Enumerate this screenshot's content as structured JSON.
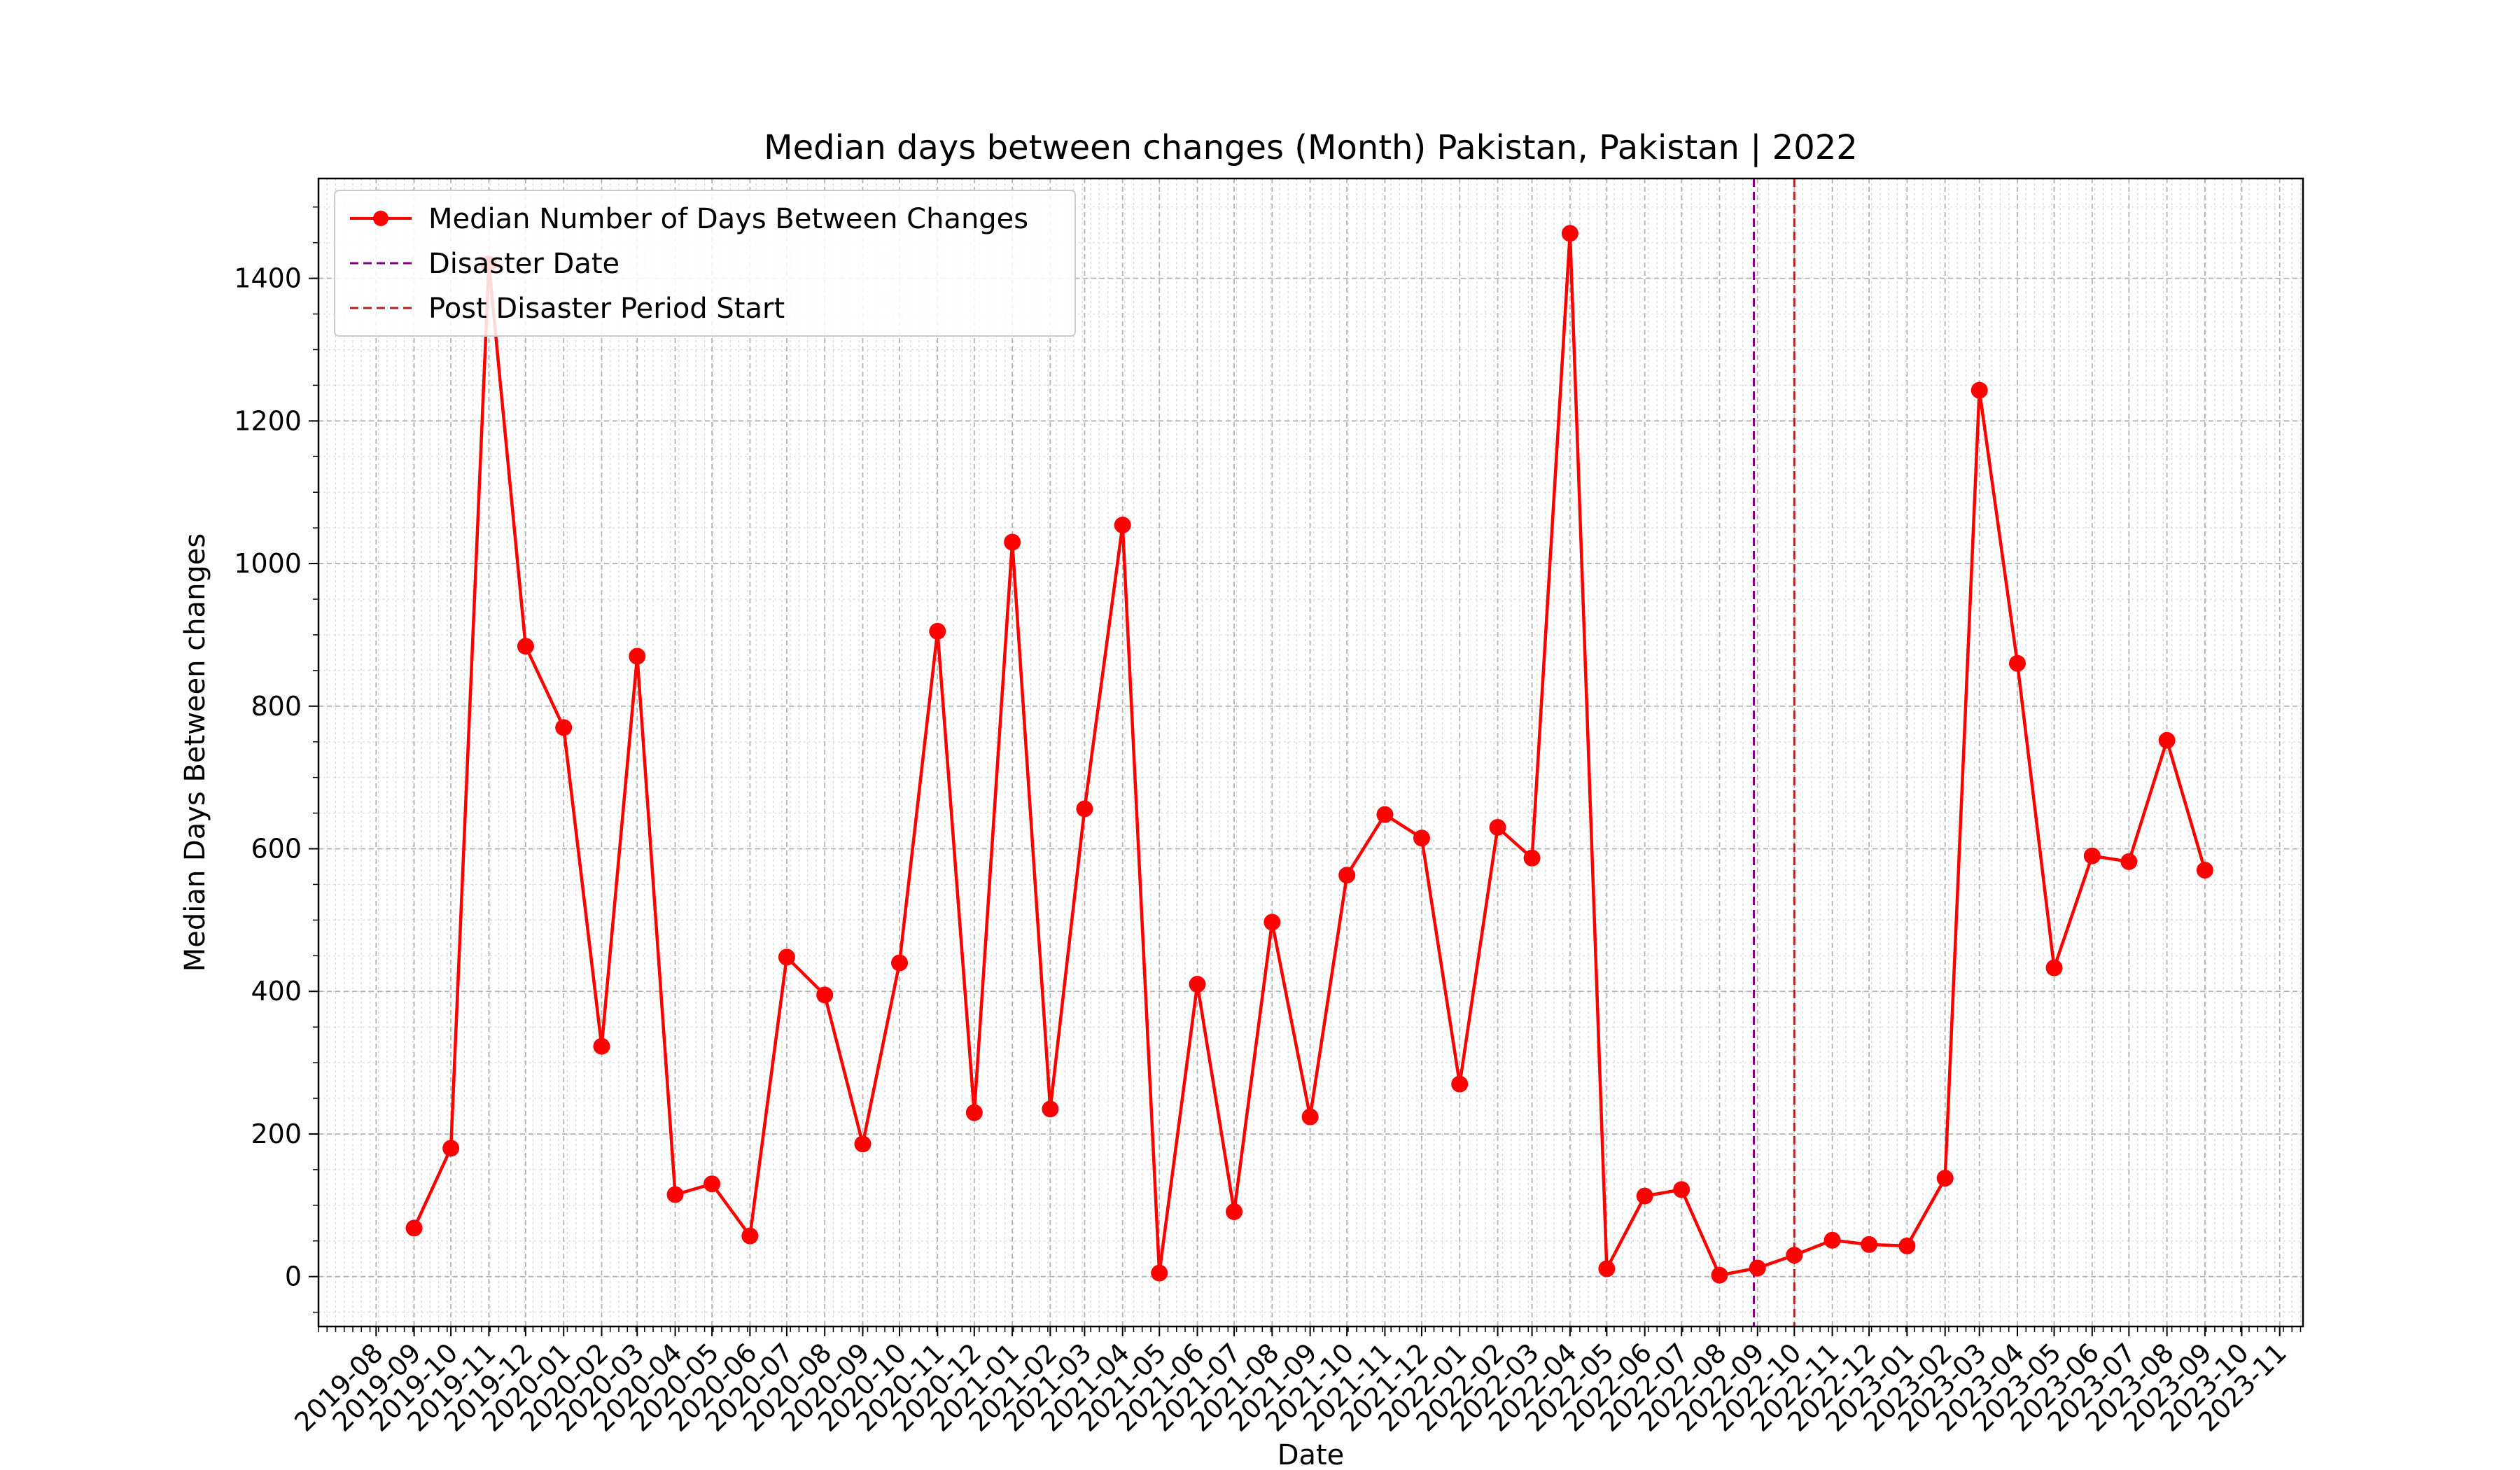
{
  "chart_data": {
    "type": "line",
    "title": "Median days between changes (Month) Pakistan, Pakistan | 2022",
    "xlabel": "Date",
    "ylabel": "Median Days Between changes",
    "ylim": [
      -70,
      1540
    ],
    "yticks": [
      0,
      200,
      400,
      600,
      800,
      1000,
      1200,
      1400
    ],
    "xlim": [
      "2019-06-15",
      "2023-11-20"
    ],
    "xticks": [
      "2019-08",
      "2019-09",
      "2019-10",
      "2019-11",
      "2019-12",
      "2020-01",
      "2020-02",
      "2020-03",
      "2020-04",
      "2020-05",
      "2020-06",
      "2020-07",
      "2020-08",
      "2020-09",
      "2020-10",
      "2020-11",
      "2020-12",
      "2021-01",
      "2021-02",
      "2021-03",
      "2021-04",
      "2021-05",
      "2021-06",
      "2021-07",
      "2021-08",
      "2021-09",
      "2021-10",
      "2021-11",
      "2021-12",
      "2022-01",
      "2022-02",
      "2022-03",
      "2022-04",
      "2022-05",
      "2022-06",
      "2022-07",
      "2022-08",
      "2022-09",
      "2022-10",
      "2022-11",
      "2022-12",
      "2023-01",
      "2023-02",
      "2023-03",
      "2023-04",
      "2023-05",
      "2023-06",
      "2023-07",
      "2023-08",
      "2023-09",
      "2023-10",
      "2023-11"
    ],
    "grid": true,
    "legend_position": "top-left",
    "series": [
      {
        "name": "Median Number of Days Between Changes",
        "color": "#ff0000",
        "marker": "circle",
        "x": [
          "2019-09-01",
          "2019-10-01",
          "2019-11-01",
          "2019-12-01",
          "2020-01-01",
          "2020-02-01",
          "2020-03-01",
          "2020-04-01",
          "2020-05-01",
          "2020-06-01",
          "2020-07-01",
          "2020-08-01",
          "2020-09-01",
          "2020-10-01",
          "2020-11-01",
          "2020-12-01",
          "2021-01-01",
          "2021-02-01",
          "2021-03-01",
          "2021-04-01",
          "2021-05-01",
          "2021-06-01",
          "2021-07-01",
          "2021-08-01",
          "2021-09-01",
          "2021-10-01",
          "2021-11-01",
          "2021-12-01",
          "2022-01-01",
          "2022-02-01",
          "2022-03-01",
          "2022-04-01",
          "2022-05-01",
          "2022-06-01",
          "2022-07-01",
          "2022-08-01",
          "2022-09-01",
          "2022-10-01",
          "2022-11-01",
          "2022-12-01",
          "2023-01-01",
          "2023-02-01",
          "2023-03-01",
          "2023-04-01",
          "2023-05-01",
          "2023-06-01",
          "2023-07-01",
          "2023-08-01",
          "2023-09-01"
        ],
        "values": [
          68,
          180,
          1420,
          884,
          770,
          323,
          870,
          115,
          130,
          57,
          448,
          395,
          186,
          440,
          905,
          230,
          1030,
          235,
          656,
          1054,
          5,
          410,
          91,
          497,
          224,
          563,
          648,
          615,
          270,
          630,
          587,
          1463,
          11,
          113,
          122,
          2,
          12,
          30,
          51,
          45,
          43,
          138,
          1243,
          860,
          433,
          590,
          582,
          752,
          570
        ]
      }
    ],
    "vlines": [
      {
        "name": "Disaster Date",
        "x": "2022-08-29",
        "color": "#800080",
        "style": "dashed"
      },
      {
        "name": "Post Disaster Period Start",
        "x": "2022-10-01",
        "color": "#b22222",
        "style": "dashed"
      }
    ]
  }
}
